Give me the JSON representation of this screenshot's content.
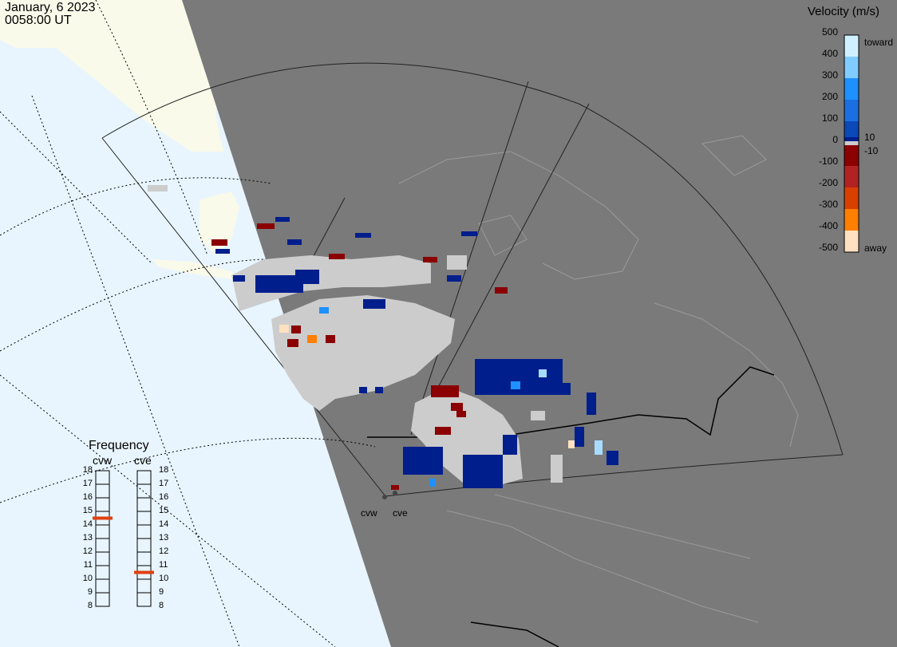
{
  "header": {
    "date": "January, 6 2023",
    "time": "0058:00 UT"
  },
  "velocity_scale": {
    "title": "Velocity (m/s)",
    "tick_labels": [
      "500",
      "400",
      "300",
      "200",
      "100",
      "0",
      "-100",
      "-200",
      "-300",
      "-400",
      "-500"
    ],
    "near_zero_labels": [
      "10",
      "-10"
    ],
    "toward_label": "toward",
    "away_label": "away",
    "colors": [
      "#d0f0ff",
      "#80ccff",
      "#1e90ff",
      "#1c6fe0",
      "#0b48b8",
      "#001e8c",
      "#cccccc",
      "#8b0000",
      "#b22222",
      "#d84000",
      "#ff7f00",
      "#ffa64d",
      "#ffe0c0"
    ]
  },
  "frequency": {
    "title": "Frequency",
    "ticks": [
      "18",
      "17",
      "16",
      "15",
      "14",
      "13",
      "12",
      "11",
      "10",
      "9",
      "8"
    ],
    "radars": [
      {
        "name": "cvw",
        "value": 15
      },
      {
        "name": "cve",
        "value": 11
      }
    ],
    "marker_color": "#e04010"
  },
  "map_labels": {
    "cvw": "cvw",
    "cve": "cve"
  },
  "colors": {
    "ocean": "#e8f5fe",
    "daylight_land": "#fafaea",
    "night_shade": "#7a7a7a",
    "ground_scatter": "#cccccc"
  }
}
